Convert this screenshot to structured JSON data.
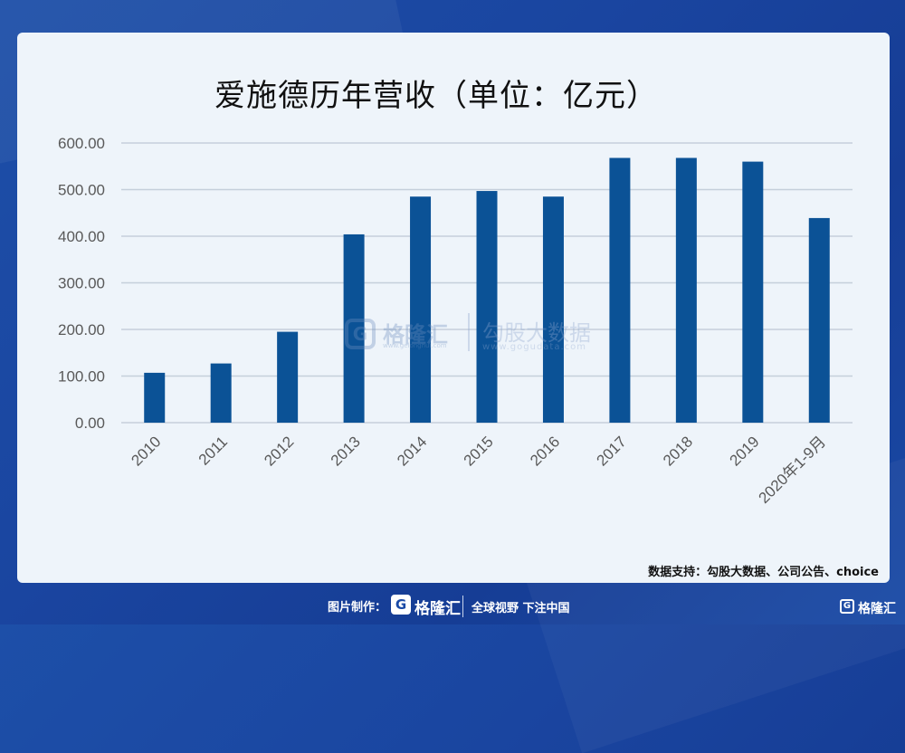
{
  "brand": {
    "watermark_name": "格隆汇",
    "watermark_url": "www.gelonghui.com",
    "watermark_name2": "勾股大数据",
    "watermark_url2": "www.gogudata.com",
    "footer_label": "图片制作：",
    "footer_logo": "G",
    "footer_brand": "格隆汇",
    "footer_slogan": "全球视野 下注中国",
    "corner_logo": "G",
    "corner_brand": "格隆汇"
  },
  "source_text": "数据支持：勾股大数据、公司公告、choice",
  "colors": {
    "bar": "#0b5296",
    "grid": "#c5cfdb",
    "axis_text": "#595959"
  },
  "chart_data": {
    "type": "bar",
    "title": "爱施德历年营收（单位：亿元）",
    "xlabel": "",
    "ylabel": "",
    "categories": [
      "2010",
      "2011",
      "2012",
      "2013",
      "2014",
      "2015",
      "2016",
      "2017",
      "2018",
      "2019",
      "2020年1-9月"
    ],
    "values": [
      107,
      127,
      195,
      404,
      485,
      497,
      485,
      568,
      568,
      560,
      439
    ],
    "ylim": [
      0,
      600
    ],
    "yticks": [
      "0.00",
      "100.00",
      "200.00",
      "300.00",
      "400.00",
      "500.00",
      "600.00"
    ],
    "grid": true,
    "legend": "none"
  }
}
